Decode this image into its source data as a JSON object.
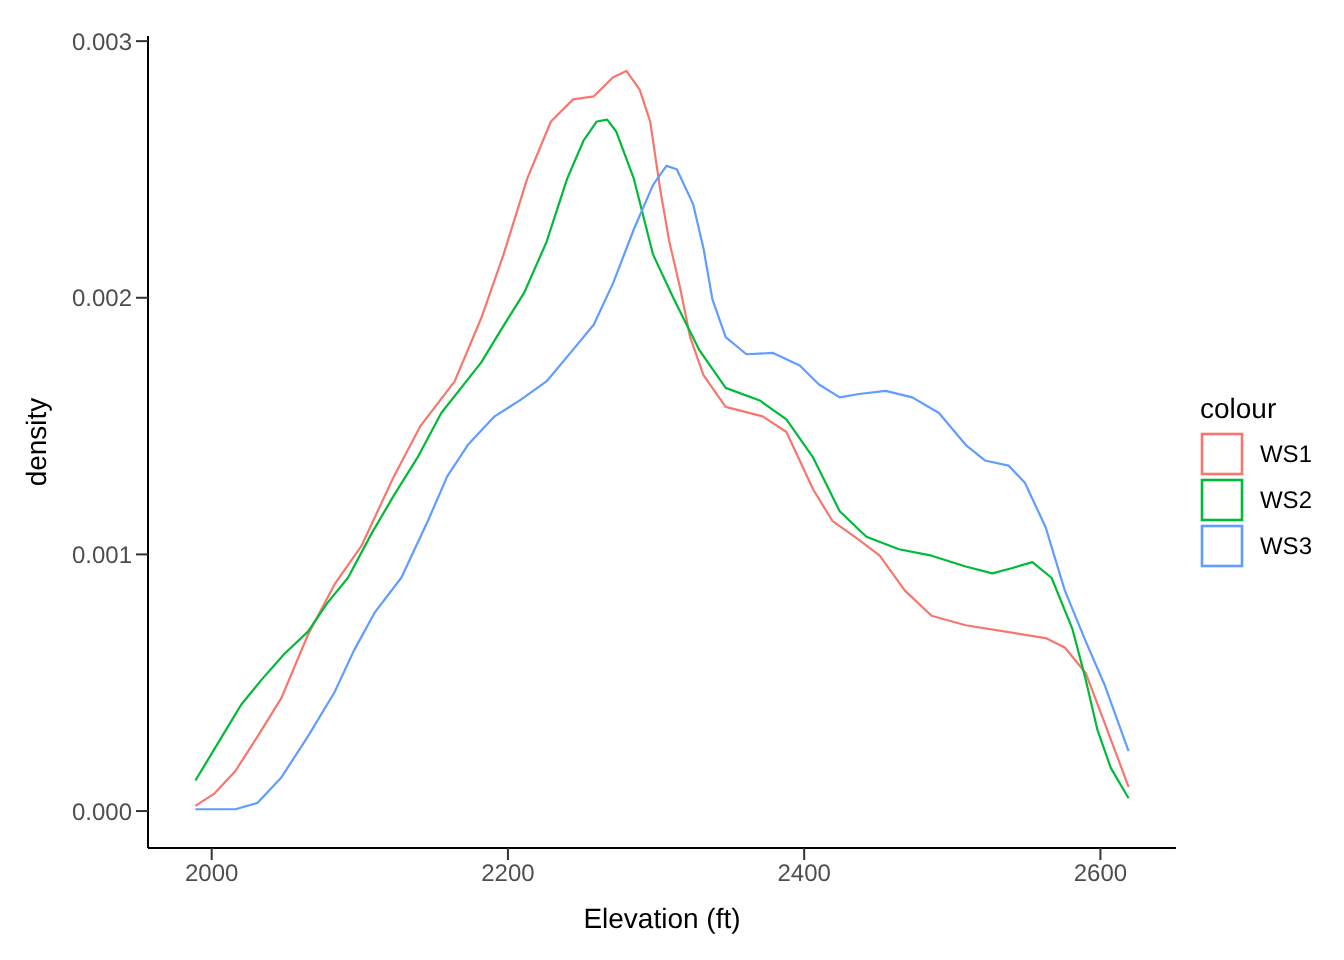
{
  "chart_data": {
    "type": "line",
    "xlabel": "Elevation (ft)",
    "ylabel": "density",
    "legend_title": "colour",
    "legend": "right",
    "xlim": [
      1957,
      2651
    ],
    "xticks": [
      2000,
      2200,
      2400,
      2600
    ],
    "ylim": [
      -0.000144,
      0.00302
    ],
    "yticks": [
      {
        "value": 0,
        "label": "0.000"
      },
      {
        "value": 0.001,
        "label": "0.001"
      },
      {
        "value": 0.002,
        "label": "0.002"
      },
      {
        "value": 0.003,
        "label": "0.003"
      }
    ],
    "series": [
      {
        "name": "WS1",
        "color": "#f8766d",
        "x": [
          1989,
          2002,
          2016,
          2031,
          2047,
          2065,
          2083,
          2101,
          2123,
          2141,
          2164,
          2182,
          2197,
          2213,
          2229,
          2244,
          2258,
          2271,
          2280,
          2289,
          2296,
          2303,
          2309,
          2316,
          2323,
          2332,
          2347,
          2372,
          2388,
          2406,
          2419,
          2437,
          2451,
          2468,
          2486,
          2509,
          2536,
          2563,
          2576,
          2590,
          2603,
          2619
        ],
        "values": [
          2e-05,
          6.9e-05,
          0.000156,
          0.000291,
          0.00044,
          0.000687,
          0.000884,
          0.001032,
          0.001304,
          0.001501,
          0.001674,
          0.001921,
          0.002168,
          0.002464,
          0.002687,
          0.002773,
          0.002785,
          0.002859,
          0.002884,
          0.00281,
          0.002687,
          0.002415,
          0.002217,
          0.002045,
          0.001847,
          0.001699,
          0.001575,
          0.001538,
          0.001477,
          0.001254,
          0.001131,
          0.001057,
          0.000995,
          0.000859,
          0.000761,
          0.000724,
          0.000699,
          0.000674,
          0.000637,
          0.000538,
          0.000341,
          9.4e-05
        ]
      },
      {
        "name": "WS2",
        "color": "#00ba38",
        "x": [
          1989,
          2007,
          2020,
          2034,
          2049,
          2065,
          2078,
          2092,
          2108,
          2123,
          2139,
          2155,
          2182,
          2195,
          2211,
          2226,
          2240,
          2251,
          2260,
          2267,
          2273,
          2285,
          2298,
          2312,
          2329,
          2347,
          2370,
          2388,
          2406,
          2424,
          2442,
          2464,
          2486,
          2509,
          2527,
          2540,
          2554,
          2567,
          2581,
          2590,
          2598,
          2607,
          2619
        ],
        "values": [
          0.000119,
          0.000291,
          0.000415,
          0.000514,
          0.000612,
          0.000699,
          0.00081,
          0.000909,
          0.001082,
          0.00123,
          0.001378,
          0.001551,
          0.001748,
          0.001872,
          0.00202,
          0.002217,
          0.002464,
          0.002612,
          0.002687,
          0.002694,
          0.002649,
          0.002464,
          0.002168,
          0.001995,
          0.001798,
          0.001649,
          0.0016,
          0.001526,
          0.001378,
          0.001168,
          0.001069,
          0.00102,
          0.000995,
          0.000953,
          0.000926,
          0.000946,
          0.00097,
          0.000909,
          0.000711,
          0.000514,
          0.000316,
          0.000168,
          5e-05
        ]
      },
      {
        "name": "WS3",
        "color": "#619cff",
        "x": [
          1989,
          2016,
          2031,
          2047,
          2065,
          2083,
          2096,
          2110,
          2128,
          2146,
          2159,
          2173,
          2191,
          2208,
          2226,
          2244,
          2258,
          2271,
          2285,
          2298,
          2307,
          2314,
          2325,
          2332,
          2338,
          2347,
          2361,
          2379,
          2397,
          2410,
          2424,
          2437,
          2455,
          2473,
          2491,
          2509,
          2522,
          2538,
          2549,
          2563,
          2576,
          2590,
          2603,
          2619
        ],
        "values": [
          7e-06,
          7e-06,
          3.2e-05,
          0.000131,
          0.000291,
          0.000464,
          0.000625,
          0.000773,
          0.000909,
          0.001131,
          0.001304,
          0.001427,
          0.001538,
          0.0016,
          0.001674,
          0.001798,
          0.001896,
          0.002057,
          0.002267,
          0.00244,
          0.002514,
          0.002501,
          0.002365,
          0.002193,
          0.001995,
          0.001847,
          0.00178,
          0.001785,
          0.001736,
          0.001662,
          0.001612,
          0.001625,
          0.001637,
          0.001612,
          0.001551,
          0.001427,
          0.001366,
          0.001346,
          0.001279,
          0.001106,
          0.000859,
          0.000662,
          0.000489,
          0.000233
        ]
      }
    ]
  }
}
